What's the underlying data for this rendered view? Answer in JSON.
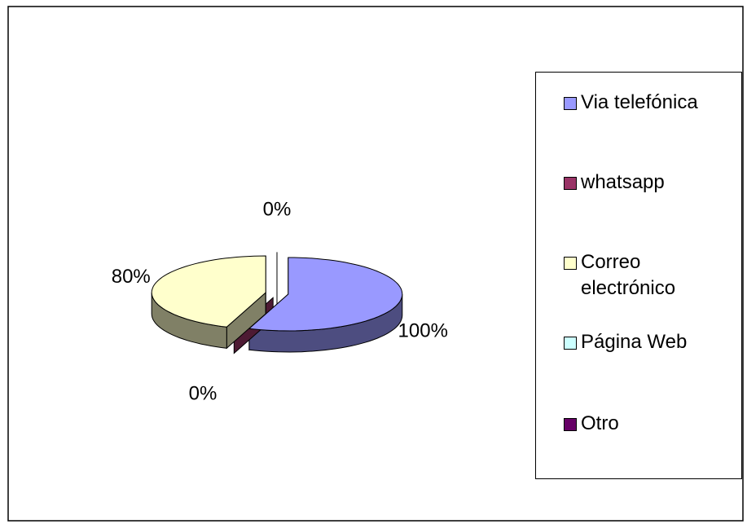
{
  "chart_data": {
    "type": "pie3d",
    "categories": [
      "Via telefónica",
      "whatsapp",
      "Correo electrónico",
      "Página Web",
      "Otro"
    ],
    "values": [
      100,
      0,
      80,
      0,
      0
    ],
    "value_labels": [
      "100%",
      "0%",
      "80%",
      null,
      "0%"
    ],
    "colors": [
      "#9999ff",
      "#993366",
      "#ffffcc",
      "#ccffff",
      "#660066"
    ],
    "legend": "right"
  }
}
